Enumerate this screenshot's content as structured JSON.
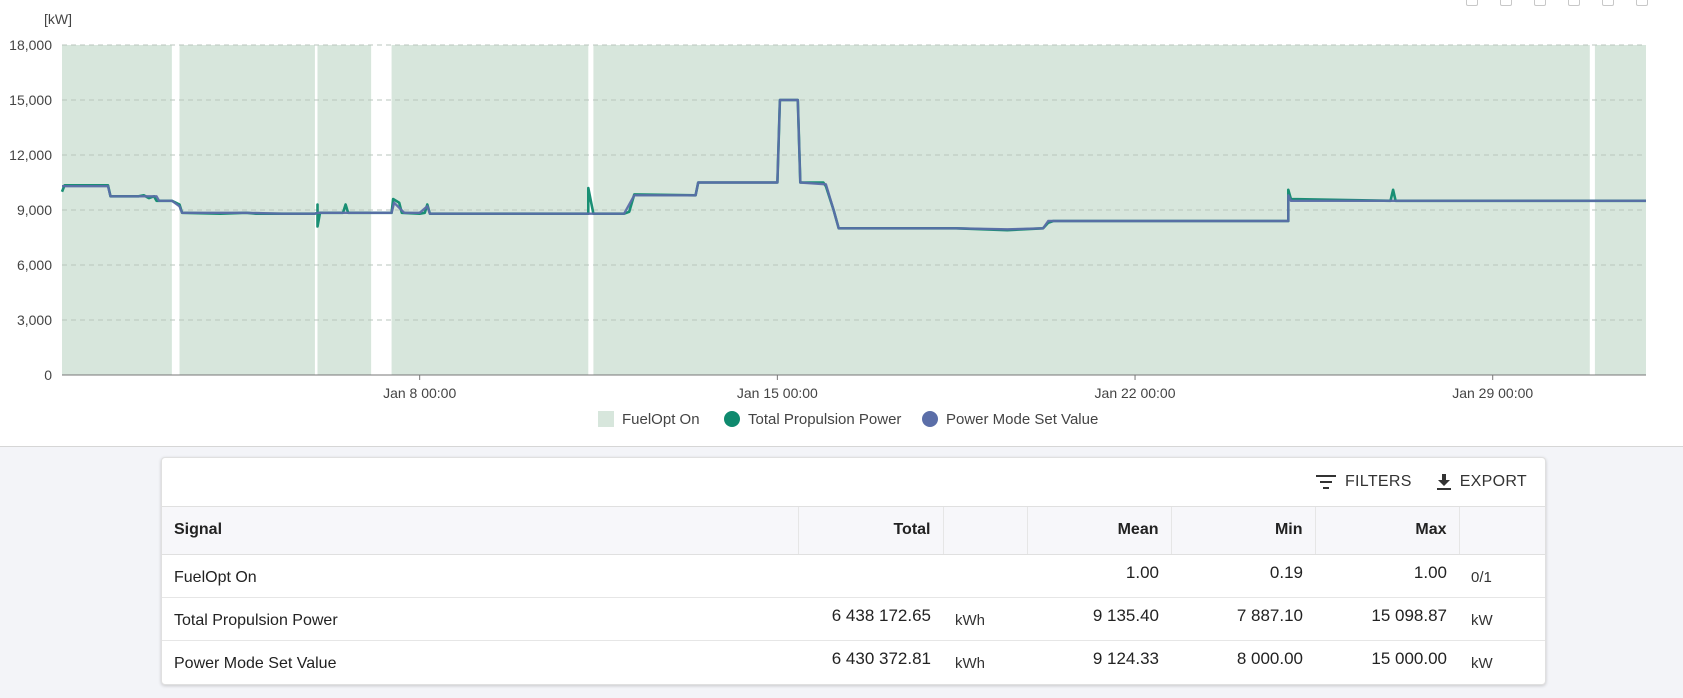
{
  "chart_data": {
    "type": "line",
    "unit_label": "[kW]",
    "ylim": [
      0,
      18000
    ],
    "yticks": [
      0,
      3000,
      6000,
      9000,
      12000,
      15000,
      18000
    ],
    "ytick_labels": [
      "0",
      "3,000",
      "6,000",
      "9,000",
      "12,000",
      "15,000",
      "18,000"
    ],
    "xlim": [
      0,
      31.0
    ],
    "xticks": [
      {
        "x": 7.0,
        "label": "Jan 8 00:00"
      },
      {
        "x": 14.0,
        "label": "Jan 15 00:00"
      },
      {
        "x": 21.0,
        "label": "Jan 22 00:00"
      },
      {
        "x": 28.0,
        "label": "Jan 29 00:00"
      }
    ],
    "gridlines": true,
    "legend_position": "bottom-center",
    "series": [
      {
        "name": "FuelOpt On",
        "kind": "band",
        "color": "#d7e6dc",
        "values": [
          [
            0.0,
            2.15
          ],
          [
            2.3,
            4.95
          ],
          [
            5.0,
            6.05
          ],
          [
            6.45,
            10.3
          ],
          [
            10.4,
            29.9
          ],
          [
            30.0,
            31.0
          ]
        ]
      },
      {
        "name": "Total Propulsion Power",
        "kind": "line",
        "color": "#0f8a6e",
        "values": [
          [
            0.0,
            10000
          ],
          [
            0.05,
            10350
          ],
          [
            0.9,
            10350
          ],
          [
            0.95,
            9750
          ],
          [
            1.5,
            9750
          ],
          [
            1.6,
            9800
          ],
          [
            1.7,
            9650
          ],
          [
            1.8,
            9750
          ],
          [
            1.85,
            9500
          ],
          [
            2.15,
            9500
          ],
          [
            2.3,
            9300
          ],
          [
            2.35,
            8850
          ],
          [
            3.1,
            8800
          ],
          [
            3.6,
            8850
          ],
          [
            3.8,
            8800
          ],
          [
            4.3,
            8800
          ],
          [
            4.95,
            8800
          ],
          [
            5.0,
            8850
          ],
          [
            5.0,
            9300
          ],
          [
            5.0,
            8100
          ],
          [
            5.05,
            8850
          ],
          [
            5.5,
            8850
          ],
          [
            5.55,
            9300
          ],
          [
            5.6,
            8850
          ],
          [
            6.05,
            8850
          ],
          [
            6.45,
            8850
          ],
          [
            6.48,
            9600
          ],
          [
            6.6,
            9400
          ],
          [
            6.65,
            8850
          ],
          [
            7.0,
            8800
          ],
          [
            7.1,
            8850
          ],
          [
            7.15,
            9300
          ],
          [
            7.2,
            8800
          ],
          [
            10.3,
            8800
          ],
          [
            10.3,
            10200
          ],
          [
            10.4,
            8800
          ],
          [
            11.0,
            8800
          ],
          [
            11.1,
            8900
          ],
          [
            11.2,
            9850
          ],
          [
            12.4,
            9800
          ],
          [
            12.45,
            10500
          ],
          [
            13.6,
            10500
          ],
          [
            14.0,
            10500
          ],
          [
            14.05,
            15000
          ],
          [
            14.4,
            15000
          ],
          [
            14.45,
            10500
          ],
          [
            14.9,
            10500
          ],
          [
            14.95,
            10300
          ],
          [
            15.1,
            9000
          ],
          [
            15.2,
            8000
          ],
          [
            17.5,
            8000
          ],
          [
            18.5,
            7900
          ],
          [
            19.2,
            8000
          ],
          [
            19.3,
            8300
          ],
          [
            19.4,
            8400
          ],
          [
            24.0,
            8400
          ],
          [
            24.0,
            10100
          ],
          [
            24.05,
            9600
          ],
          [
            26.0,
            9500
          ],
          [
            26.05,
            10100
          ],
          [
            26.1,
            9500
          ],
          [
            29.9,
            9500
          ],
          [
            30.0,
            9500
          ],
          [
            31.0,
            9500
          ]
        ]
      },
      {
        "name": "Power Mode Set Value",
        "kind": "line",
        "color": "#5b6ea8",
        "values": [
          [
            0.0,
            10300
          ],
          [
            0.9,
            10300
          ],
          [
            0.95,
            9750
          ],
          [
            1.85,
            9750
          ],
          [
            1.9,
            9500
          ],
          [
            2.15,
            9500
          ],
          [
            2.3,
            9200
          ],
          [
            2.35,
            8850
          ],
          [
            3.1,
            8850
          ],
          [
            3.6,
            8850
          ],
          [
            4.3,
            8800
          ],
          [
            4.95,
            8800
          ],
          [
            5.0,
            8850
          ],
          [
            6.05,
            8850
          ],
          [
            6.45,
            8850
          ],
          [
            6.5,
            9400
          ],
          [
            6.7,
            8850
          ],
          [
            7.0,
            8850
          ],
          [
            7.15,
            9200
          ],
          [
            7.2,
            8800
          ],
          [
            10.3,
            8800
          ],
          [
            10.4,
            8800
          ],
          [
            11.0,
            8800
          ],
          [
            11.2,
            9800
          ],
          [
            12.4,
            9800
          ],
          [
            12.45,
            10500
          ],
          [
            14.0,
            10500
          ],
          [
            14.05,
            15000
          ],
          [
            14.4,
            15000
          ],
          [
            14.45,
            10500
          ],
          [
            14.95,
            10400
          ],
          [
            15.1,
            9000
          ],
          [
            15.2,
            8000
          ],
          [
            17.5,
            8000
          ],
          [
            18.5,
            7950
          ],
          [
            19.2,
            8000
          ],
          [
            19.3,
            8400
          ],
          [
            24.0,
            8400
          ],
          [
            24.0,
            9800
          ],
          [
            24.05,
            9500
          ],
          [
            29.9,
            9500
          ],
          [
            30.0,
            9500
          ],
          [
            31.0,
            9500
          ]
        ]
      }
    ]
  },
  "toolbar": {
    "filters_label": "FILTERS",
    "export_label": "EXPORT"
  },
  "table": {
    "headers": {
      "signal": "Signal",
      "total": "Total",
      "mean": "Mean",
      "min": "Min",
      "max": "Max"
    },
    "rows": [
      {
        "signal": "FuelOpt On",
        "total": "",
        "total_unit": "",
        "mean": "1.00",
        "min": "0.19",
        "max": "1.00",
        "unit": "0/1"
      },
      {
        "signal": "Total Propulsion Power",
        "total": "6 438 172.65",
        "total_unit": "kWh",
        "mean": "9 135.40",
        "min": "7 887.10",
        "max": "15 098.87",
        "unit": "kW"
      },
      {
        "signal": "Power Mode Set Value",
        "total": "6 430 372.81",
        "total_unit": "kWh",
        "mean": "9 124.33",
        "min": "8 000.00",
        "max": "15 000.00",
        "unit": "kW"
      }
    ]
  }
}
